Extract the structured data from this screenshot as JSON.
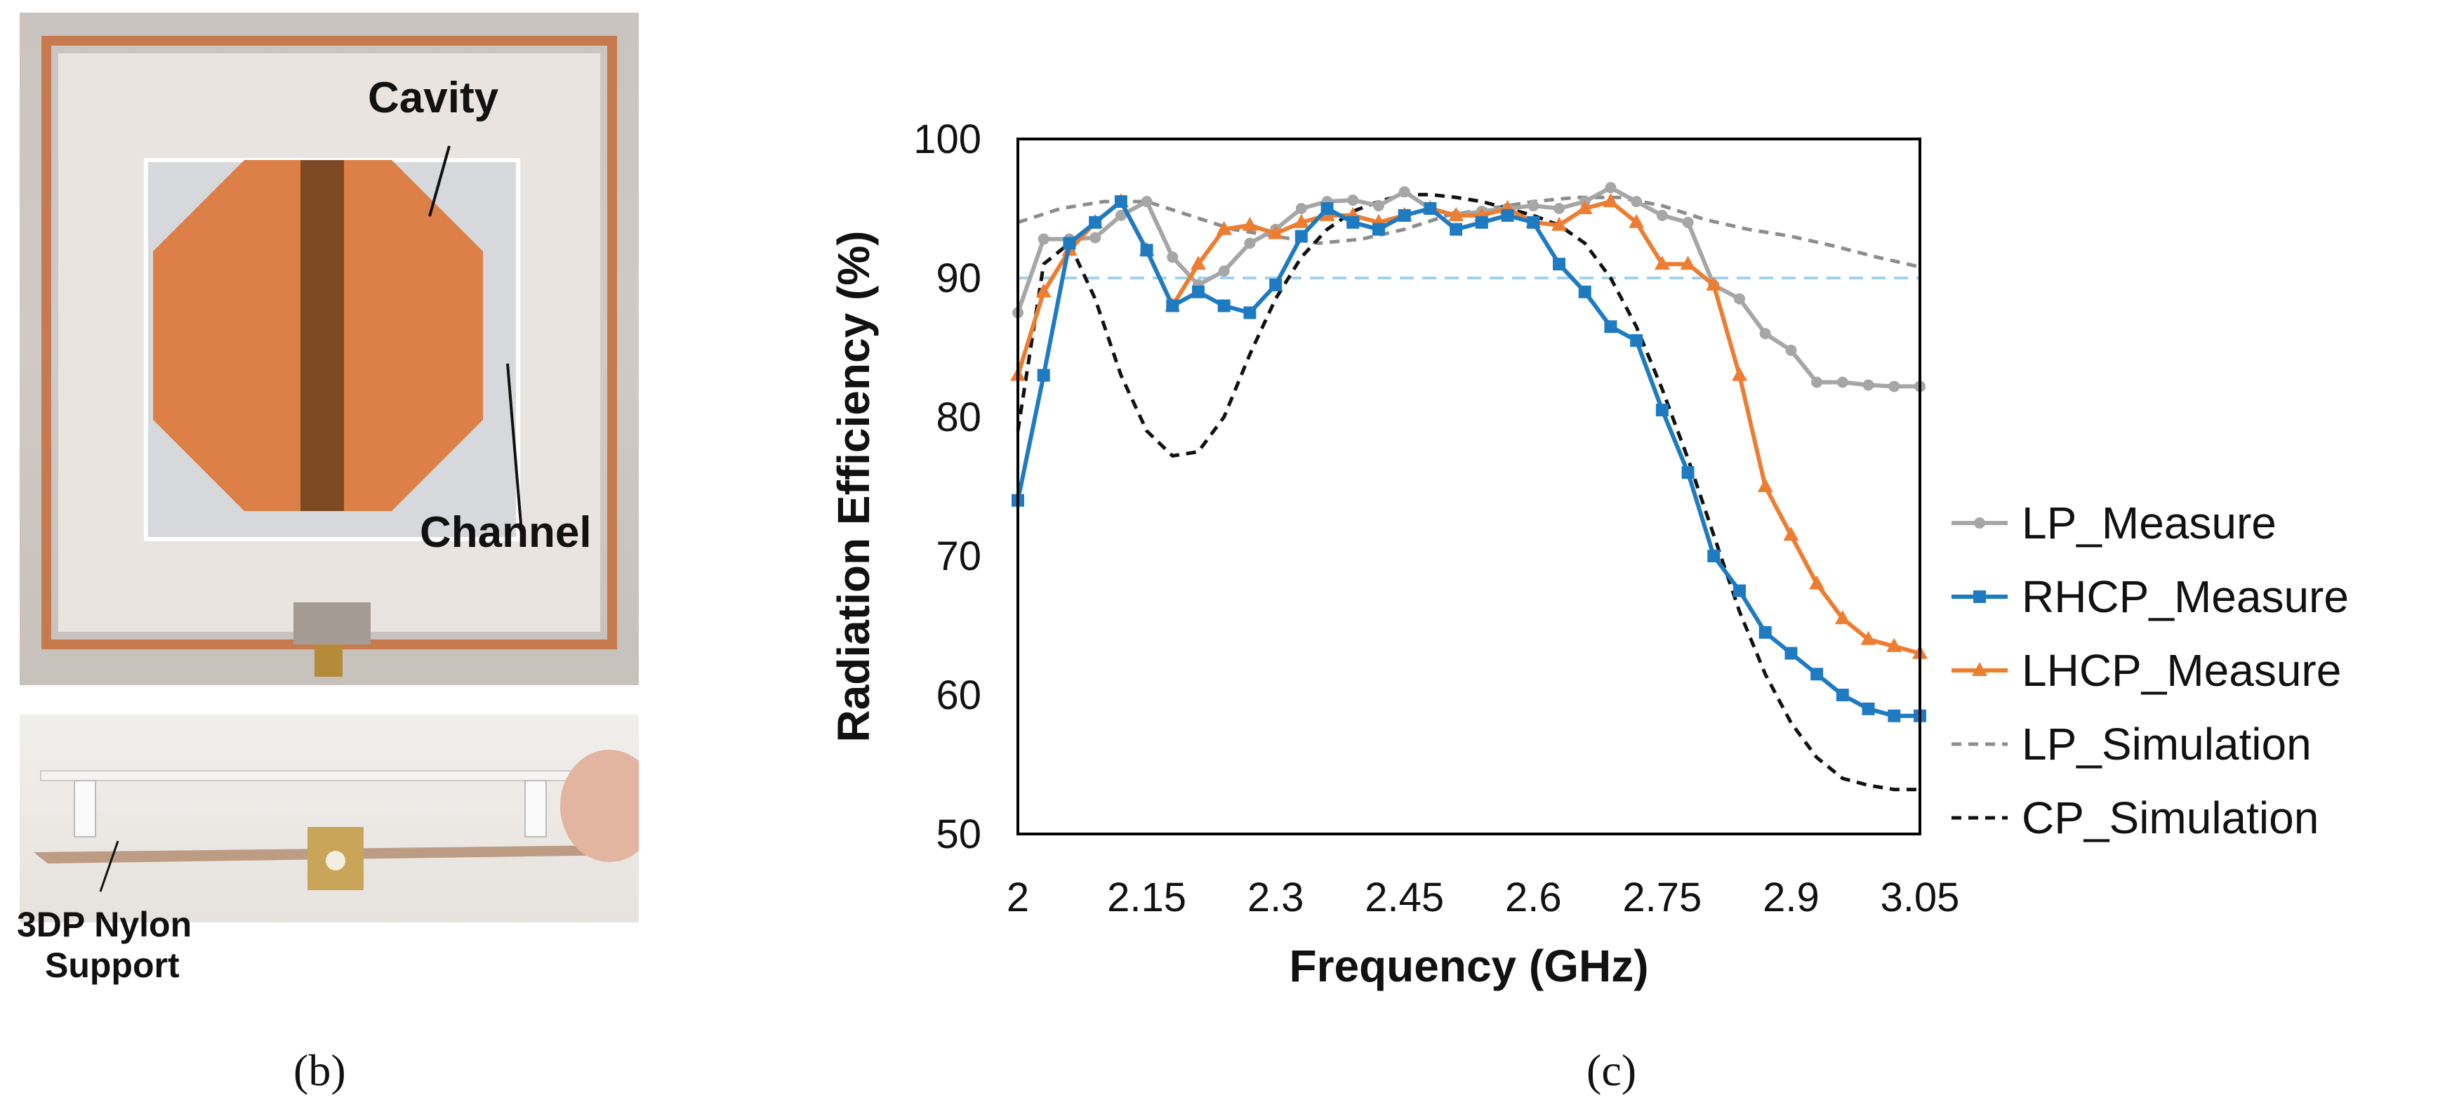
{
  "figure": {
    "photo_labels": {
      "cavity": "Cavity",
      "channel": "Channel",
      "support_line1": "3DP Nylon",
      "support_line2": "Support"
    },
    "captions": {
      "left": "(b)",
      "right": "(c)"
    }
  },
  "colors": {
    "lp_measure": "#a6a6a6",
    "rhcp_measure": "#1f7bc1",
    "lhcp_measure": "#ed7d31",
    "lp_simulation": "#8c8c8c",
    "cp_simulation": "#111111",
    "reference_90": "#9fd2f0"
  },
  "chart_data": {
    "type": "line",
    "title": "",
    "xlabel": "Frequency (GHz)",
    "ylabel": "Radiation Efficiency (%)",
    "xlim": [
      2.0,
      3.05
    ],
    "ylim": [
      50,
      100
    ],
    "x_ticks": [
      "2",
      "2.15",
      "2.3",
      "2.45",
      "2.6",
      "2.75",
      "2.9",
      "3.05"
    ],
    "y_ticks": [
      "50",
      "60",
      "70",
      "80",
      "90",
      "100"
    ],
    "reference_line": {
      "y": 90,
      "style": "dashed"
    },
    "series": [
      {
        "name": "LP_Measure",
        "style": "solid",
        "marker": "circle",
        "x": [
          2.0,
          2.03,
          2.06,
          2.09,
          2.12,
          2.15,
          2.18,
          2.21,
          2.24,
          2.27,
          2.3,
          2.33,
          2.36,
          2.39,
          2.42,
          2.45,
          2.48,
          2.51,
          2.54,
          2.57,
          2.6,
          2.63,
          2.66,
          2.69,
          2.72,
          2.75,
          2.78,
          2.81,
          2.84,
          2.87,
          2.9,
          2.93,
          2.96,
          2.99,
          3.02,
          3.05
        ],
        "values": [
          87.5,
          92.8,
          92.8,
          92.9,
          94.5,
          95.5,
          91.5,
          89.5,
          90.5,
          92.5,
          93.5,
          95.0,
          95.5,
          95.6,
          95.2,
          96.2,
          95.0,
          94.5,
          94.8,
          95.0,
          95.2,
          95.0,
          95.5,
          96.5,
          95.5,
          94.5,
          94.0,
          89.5,
          88.5,
          86.0,
          84.8,
          82.5,
          82.5,
          82.3,
          82.2,
          82.2
        ]
      },
      {
        "name": "RHCP_Measure",
        "style": "solid",
        "marker": "square",
        "x": [
          2.0,
          2.03,
          2.06,
          2.09,
          2.12,
          2.15,
          2.18,
          2.21,
          2.24,
          2.27,
          2.3,
          2.33,
          2.36,
          2.39,
          2.42,
          2.45,
          2.48,
          2.51,
          2.54,
          2.57,
          2.6,
          2.63,
          2.66,
          2.69,
          2.72,
          2.75,
          2.78,
          2.81,
          2.84,
          2.87,
          2.9,
          2.93,
          2.96,
          2.99,
          3.02,
          3.05
        ],
        "values": [
          74.0,
          83.0,
          92.5,
          94.0,
          95.5,
          92.0,
          88.0,
          89.0,
          88.0,
          87.5,
          89.5,
          93.0,
          95.0,
          94.0,
          93.5,
          94.5,
          95.0,
          93.5,
          94.0,
          94.5,
          94.0,
          91.0,
          89.0,
          86.5,
          85.5,
          80.5,
          76.0,
          70.0,
          67.5,
          64.5,
          63.0,
          61.5,
          60.0,
          59.0,
          58.5,
          58.5
        ]
      },
      {
        "name": "LHCP_Measure",
        "style": "solid",
        "marker": "triangle",
        "x": [
          2.0,
          2.03,
          2.06,
          2.09,
          2.12,
          2.15,
          2.18,
          2.21,
          2.24,
          2.27,
          2.3,
          2.33,
          2.36,
          2.39,
          2.42,
          2.45,
          2.48,
          2.51,
          2.54,
          2.57,
          2.6,
          2.63,
          2.66,
          2.69,
          2.72,
          2.75,
          2.78,
          2.81,
          2.84,
          2.87,
          2.9,
          2.93,
          2.96,
          2.99,
          3.02,
          3.05
        ],
        "values": [
          83.0,
          89.0,
          92.0,
          94.0,
          95.5,
          92.0,
          88.0,
          91.0,
          93.5,
          93.8,
          93.2,
          94.0,
          94.5,
          94.5,
          94.0,
          94.5,
          95.0,
          94.5,
          94.5,
          95.0,
          94.0,
          93.8,
          95.0,
          95.5,
          94.0,
          91.0,
          91.0,
          89.5,
          83.0,
          75.0,
          71.5,
          68.0,
          65.5,
          64.0,
          63.5,
          63.0
        ]
      },
      {
        "name": "LP_Simulation",
        "style": "dashed",
        "marker": "none",
        "x": [
          2.0,
          2.05,
          2.1,
          2.15,
          2.2,
          2.25,
          2.3,
          2.35,
          2.4,
          2.45,
          2.5,
          2.55,
          2.6,
          2.65,
          2.7,
          2.75,
          2.8,
          2.85,
          2.9,
          2.95,
          3.0,
          3.05
        ],
        "values": [
          94.0,
          95.0,
          95.5,
          95.5,
          94.5,
          93.5,
          93.0,
          92.5,
          92.8,
          93.5,
          94.5,
          95.0,
          95.5,
          95.8,
          95.8,
          95.2,
          94.2,
          93.5,
          93.0,
          92.3,
          91.5,
          90.8
        ]
      },
      {
        "name": "CP_Simulation",
        "style": "dashed",
        "marker": "none",
        "x": [
          2.0,
          2.03,
          2.06,
          2.09,
          2.12,
          2.15,
          2.18,
          2.21,
          2.24,
          2.27,
          2.3,
          2.33,
          2.36,
          2.39,
          2.42,
          2.45,
          2.48,
          2.51,
          2.54,
          2.57,
          2.6,
          2.63,
          2.66,
          2.69,
          2.72,
          2.75,
          2.78,
          2.81,
          2.84,
          2.87,
          2.9,
          2.93,
          2.96,
          2.99,
          3.02,
          3.05
        ],
        "values": [
          79.0,
          91.0,
          92.5,
          88.5,
          83.0,
          79.0,
          77.2,
          77.5,
          80.0,
          84.5,
          88.5,
          91.5,
          93.5,
          94.8,
          95.5,
          96.0,
          96.0,
          95.8,
          95.5,
          95.0,
          94.5,
          93.8,
          92.5,
          90.0,
          86.5,
          82.0,
          77.0,
          71.5,
          66.0,
          61.5,
          58.0,
          55.5,
          54.0,
          53.5,
          53.2,
          53.2
        ]
      }
    ]
  }
}
